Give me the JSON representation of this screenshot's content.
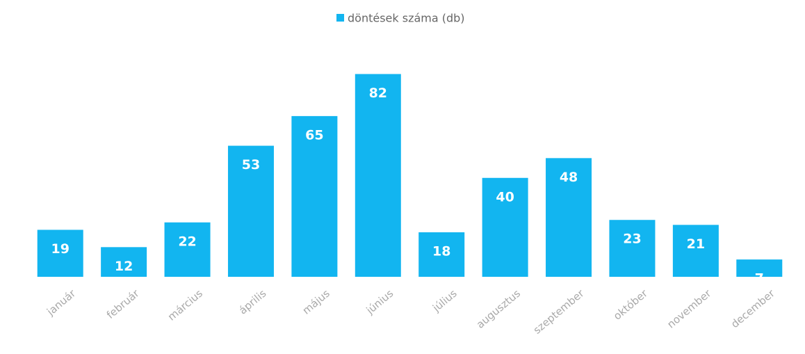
{
  "chart_data": {
    "type": "bar",
    "categories": [
      "január",
      "február",
      "március",
      "április",
      "május",
      "június",
      "július",
      "augusztus",
      "szeptember",
      "október",
      "november",
      "december"
    ],
    "series": [
      {
        "name": "döntések száma (db)",
        "color": "#12b5f0",
        "values": [
          19,
          12,
          22,
          53,
          65,
          82,
          18,
          40,
          48,
          23,
          21,
          7
        ]
      }
    ],
    "ylim": [
      0,
      90
    ],
    "legend": "top"
  }
}
